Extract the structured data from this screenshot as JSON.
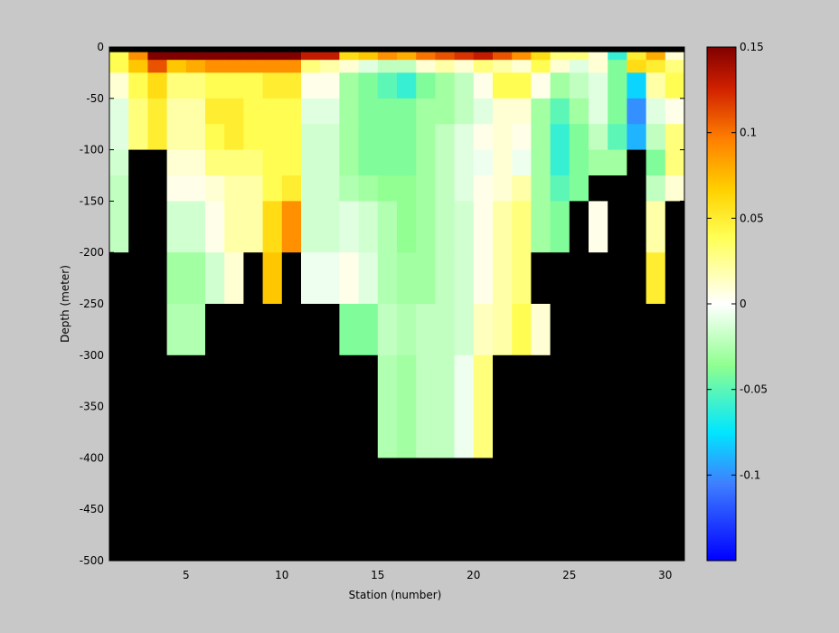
{
  "chart_data": {
    "type": "heatmap",
    "title": "",
    "xlabel": "Station (number)",
    "ylabel": "Depth (meter)",
    "xlim": [
      1,
      31
    ],
    "ylim": [
      -500,
      0
    ],
    "xticks": [
      5,
      10,
      15,
      20,
      25,
      30
    ],
    "yticks": [
      0,
      -50,
      -100,
      -150,
      -200,
      -250,
      -300,
      -350,
      -400,
      -450,
      -500
    ],
    "stations": [
      1,
      2,
      3,
      4,
      5,
      6,
      7,
      8,
      9,
      10,
      11,
      12,
      13,
      14,
      15,
      16,
      17,
      18,
      19,
      20,
      21,
      22,
      23,
      24,
      25,
      26,
      27,
      28,
      29,
      30
    ],
    "depth_bins": [
      {
        "top": 0,
        "bottom": -5
      },
      {
        "top": -5,
        "bottom": -12.5
      },
      {
        "top": -12.5,
        "bottom": -25
      },
      {
        "top": -25,
        "bottom": -50
      },
      {
        "top": -50,
        "bottom": -75
      },
      {
        "top": -75,
        "bottom": -100
      },
      {
        "top": -100,
        "bottom": -125
      },
      {
        "top": -125,
        "bottom": -150
      },
      {
        "top": -150,
        "bottom": -200
      },
      {
        "top": -200,
        "bottom": -250
      },
      {
        "top": -250,
        "bottom": -300
      },
      {
        "top": -300,
        "bottom": -400
      },
      {
        "top": -400,
        "bottom": -500
      }
    ],
    "values": [
      [
        null,
        null,
        null,
        null,
        null,
        null,
        null,
        null,
        null,
        null,
        null,
        null,
        null,
        null,
        null,
        null,
        null,
        null,
        null,
        null,
        null,
        null,
        null,
        null,
        null,
        null,
        null,
        null,
        null,
        null
      ],
      [
        0.04,
        0.09,
        0.15,
        0.15,
        0.15,
        0.15,
        0.15,
        0.15,
        0.15,
        0.15,
        0.13,
        0.13,
        0.06,
        0.07,
        0.09,
        0.08,
        0.1,
        0.11,
        0.12,
        0.13,
        0.11,
        0.09,
        0.06,
        0.03,
        0.03,
        0.01,
        -0.06,
        0.05,
        0.08,
        0.01
      ],
      [
        0.04,
        0.07,
        0.11,
        0.07,
        0.08,
        0.09,
        0.09,
        0.09,
        0.09,
        0.09,
        0.03,
        0.02,
        0.01,
        -0.01,
        -0.02,
        -0.02,
        0.01,
        0.02,
        0.01,
        0.03,
        0.02,
        0.01,
        0.04,
        0.01,
        -0.01,
        0.01,
        -0.04,
        0.06,
        0.05,
        0.03
      ],
      [
        0.01,
        0.04,
        0.06,
        0.03,
        0.03,
        0.04,
        0.04,
        0.04,
        0.05,
        0.05,
        0.005,
        0.005,
        -0.03,
        -0.04,
        -0.05,
        -0.06,
        -0.04,
        -0.03,
        -0.02,
        0.005,
        0.04,
        0.04,
        0.005,
        -0.03,
        -0.02,
        -0.01,
        -0.04,
        -0.08,
        0.02,
        0.04
      ],
      [
        -0.01,
        0.03,
        0.05,
        0.02,
        0.02,
        0.05,
        0.05,
        0.04,
        0.04,
        0.04,
        -0.01,
        -0.01,
        -0.03,
        -0.04,
        -0.04,
        -0.04,
        -0.03,
        -0.03,
        -0.02,
        -0.01,
        0.01,
        0.01,
        -0.03,
        -0.05,
        -0.03,
        -0.01,
        -0.04,
        -0.1,
        -0.01,
        0.005
      ],
      [
        -0.01,
        0.03,
        0.05,
        0.02,
        0.02,
        0.04,
        0.05,
        0.04,
        0.04,
        0.04,
        -0.015,
        -0.015,
        -0.03,
        -0.04,
        -0.04,
        -0.04,
        -0.03,
        -0.02,
        -0.01,
        0.005,
        0.01,
        0.005,
        -0.03,
        -0.06,
        -0.04,
        -0.02,
        -0.05,
        -0.09,
        -0.02,
        0.03
      ],
      [
        -0.015,
        null,
        null,
        0.01,
        0.01,
        0.03,
        0.03,
        0.03,
        0.04,
        0.04,
        -0.015,
        -0.015,
        -0.03,
        -0.04,
        -0.04,
        -0.04,
        -0.03,
        -0.02,
        -0.01,
        -0.005,
        0.01,
        -0.005,
        -0.03,
        -0.06,
        -0.04,
        -0.03,
        -0.03,
        null,
        -0.04,
        0.03
      ],
      [
        -0.02,
        null,
        null,
        0.005,
        0.005,
        0.01,
        0.02,
        0.02,
        0.04,
        0.05,
        -0.015,
        -0.015,
        -0.025,
        -0.03,
        -0.035,
        -0.035,
        -0.03,
        -0.02,
        -0.01,
        0.005,
        0.01,
        0.02,
        -0.03,
        -0.05,
        -0.04,
        null,
        null,
        null,
        -0.02,
        0.01
      ],
      [
        -0.02,
        null,
        null,
        -0.015,
        -0.015,
        0.005,
        0.02,
        0.02,
        0.06,
        0.09,
        -0.015,
        -0.015,
        -0.01,
        -0.015,
        -0.025,
        -0.035,
        -0.03,
        -0.02,
        -0.015,
        0.005,
        0.02,
        0.03,
        -0.03,
        -0.04,
        null,
        0.005,
        null,
        null,
        0.02,
        null
      ],
      [
        null,
        null,
        null,
        -0.03,
        -0.03,
        -0.015,
        0.01,
        null,
        0.07,
        null,
        -0.005,
        -0.005,
        0.005,
        -0.01,
        -0.025,
        -0.03,
        -0.03,
        -0.02,
        -0.015,
        0.005,
        0.02,
        0.03,
        null,
        null,
        null,
        null,
        null,
        null,
        0.05,
        null
      ],
      [
        null,
        null,
        null,
        -0.025,
        -0.025,
        null,
        null,
        null,
        null,
        null,
        null,
        null,
        -0.04,
        -0.04,
        -0.02,
        -0.025,
        -0.02,
        -0.02,
        -0.015,
        0.015,
        0.02,
        0.04,
        0.01,
        null,
        null,
        null,
        null,
        null,
        null,
        null
      ],
      [
        null,
        null,
        null,
        null,
        null,
        null,
        null,
        null,
        null,
        null,
        null,
        null,
        null,
        null,
        -0.025,
        -0.03,
        -0.02,
        -0.02,
        -0.005,
        0.03,
        null,
        null,
        null,
        null,
        null,
        null,
        null,
        null,
        null,
        null
      ],
      [
        null,
        null,
        null,
        null,
        null,
        null,
        null,
        null,
        null,
        null,
        null,
        null,
        null,
        null,
        null,
        null,
        null,
        null,
        null,
        null,
        null,
        null,
        null,
        null,
        null,
        null,
        null,
        null,
        null,
        null
      ]
    ],
    "colorbar": {
      "range": [
        -0.15,
        0.15
      ],
      "ticks": [
        -0.1,
        -0.05,
        0,
        0.05,
        0.1,
        0.15
      ],
      "tick_labels": [
        "-0.1",
        "-0.05",
        "0",
        "0.05",
        "0.1",
        "0.15"
      ],
      "colormap": "jet-like with white at 0"
    },
    "colors": {
      "figure_bg": "#c8c8c8",
      "missing_data": "#000000"
    }
  }
}
